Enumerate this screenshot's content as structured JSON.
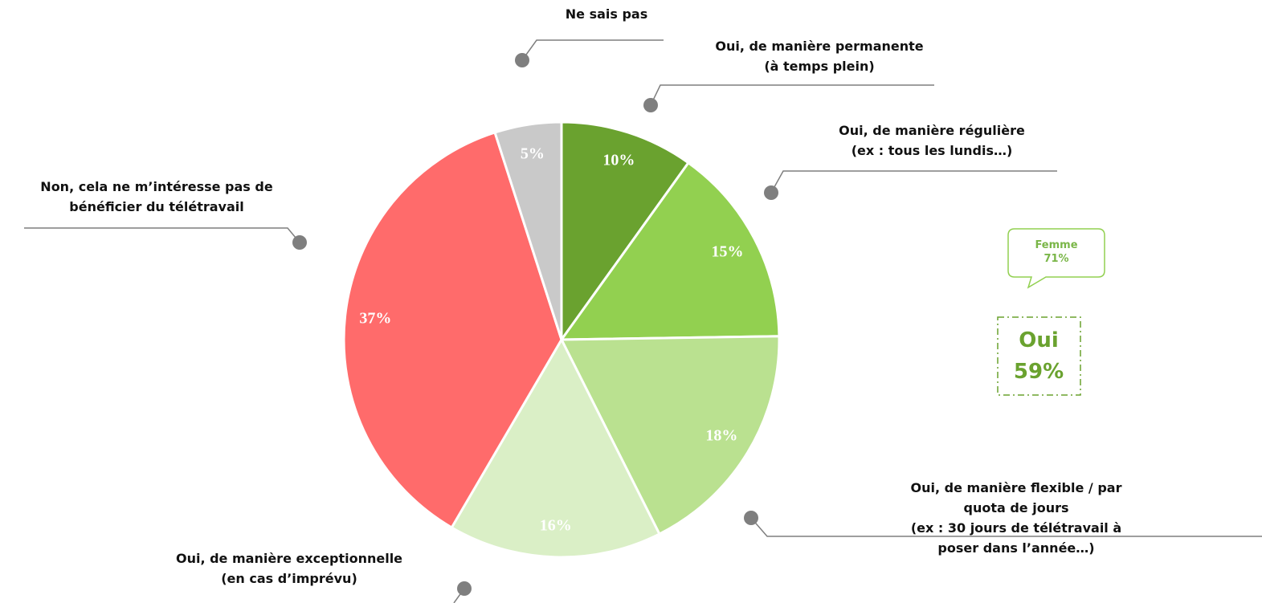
{
  "chart_data": {
    "type": "pie",
    "categories": [
      "Oui, de manière permanente\n(à temps plein)",
      "Oui, de manière régulière\n(ex : tous les lundis…)",
      "Oui, de manière flexible / par quota de jours\n(ex : 30 jours de télétravail à poser dans l’année…)",
      "Oui, de manière exceptionnelle\n(en cas d’imprévu)",
      "Non, cela ne m’intéresse pas de\nbénéficier du télétravail",
      "Ne sais pas"
    ],
    "values": [
      10,
      15,
      18,
      16,
      37,
      5
    ],
    "value_labels": [
      "10%",
      "15%",
      "18%",
      "16%",
      "37%",
      "5%"
    ],
    "colors": [
      "#6aa22f",
      "#92d050",
      "#bae190",
      "#daefc6",
      "#ff6b6b",
      "#c9c9c9"
    ],
    "annotations": {
      "callout_title": "Femme",
      "callout_value": "71%",
      "box_title": "Oui",
      "box_value": "59%"
    }
  }
}
